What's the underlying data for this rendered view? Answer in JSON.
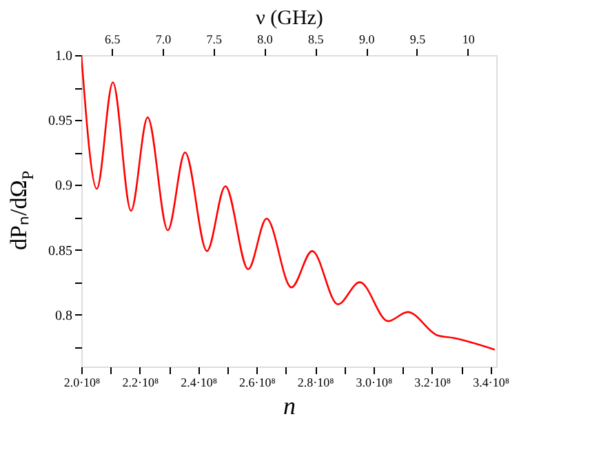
{
  "chart_data": {
    "type": "line",
    "xlabel": "n",
    "ylabel": "dPₙ/dΩ$_{P}$",
    "x2label": "ν (GHz)",
    "x": [
      200000000,
      205300000,
      210800000,
      217000000,
      222700000,
      229600000,
      235500000,
      243000000,
      249300000,
      257100000,
      263400000,
      271900000,
      279000000,
      287800000,
      295300000,
      305000000,
      311700000,
      321900000,
      327400000,
      341500000
    ],
    "series": [
      {
        "color": "#ff0000",
        "values": [
          1.0,
          0.897,
          0.979,
          0.88,
          0.952,
          0.865,
          0.925,
          0.849,
          0.899,
          0.835,
          0.874,
          0.821,
          0.849,
          0.808,
          0.825,
          0.795,
          0.802,
          0.784,
          0.782,
          0.773
        ]
      }
    ],
    "xlim": [
      200000000,
      342000000
    ],
    "xticks": [
      {
        "value": 200000000,
        "label": "2.0·10⁸"
      },
      {
        "value": 210000000,
        "label": null
      },
      {
        "value": 220000000,
        "label": "2.2·10⁸"
      },
      {
        "value": 230000000,
        "label": null
      },
      {
        "value": 240000000,
        "label": "2.4·10⁸"
      },
      {
        "value": 250000000,
        "label": null
      },
      {
        "value": 260000000,
        "label": "2.6·10⁸"
      },
      {
        "value": 270000000,
        "label": null
      },
      {
        "value": 280000000,
        "label": "2.8·10⁸"
      },
      {
        "value": 290000000,
        "label": null
      },
      {
        "value": 300000000,
        "label": "3.0·10⁸"
      },
      {
        "value": 310000000,
        "label": null
      },
      {
        "value": 320000000,
        "label": "3.2·10⁸"
      },
      {
        "value": 330000000,
        "label": null
      },
      {
        "value": 340000000,
        "label": "3.4·10⁸"
      }
    ],
    "ylim": [
      0.76,
      1.0
    ],
    "yticks": [
      {
        "value": 0.775,
        "label": null
      },
      0.8,
      {
        "value": 0.825,
        "label": null
      },
      0.85,
      {
        "value": 0.875,
        "label": null
      },
      0.9,
      {
        "value": 0.925,
        "label": null
      },
      0.95,
      {
        "value": 0.975,
        "label": null
      },
      {
        "value": 1.0,
        "label": "1.0"
      }
    ],
    "x2lim": [
      6.2,
      10.28
    ],
    "x2ticks": [
      6.5,
      {
        "value": 7.0,
        "label": "7.0"
      },
      7.5,
      {
        "value": 8.0,
        "label": "8.0"
      },
      8.5,
      {
        "value": 9.0,
        "label": "9.0"
      },
      9.5,
      10
    ],
    "grid": false,
    "marker": "none",
    "line_style": "solid"
  }
}
